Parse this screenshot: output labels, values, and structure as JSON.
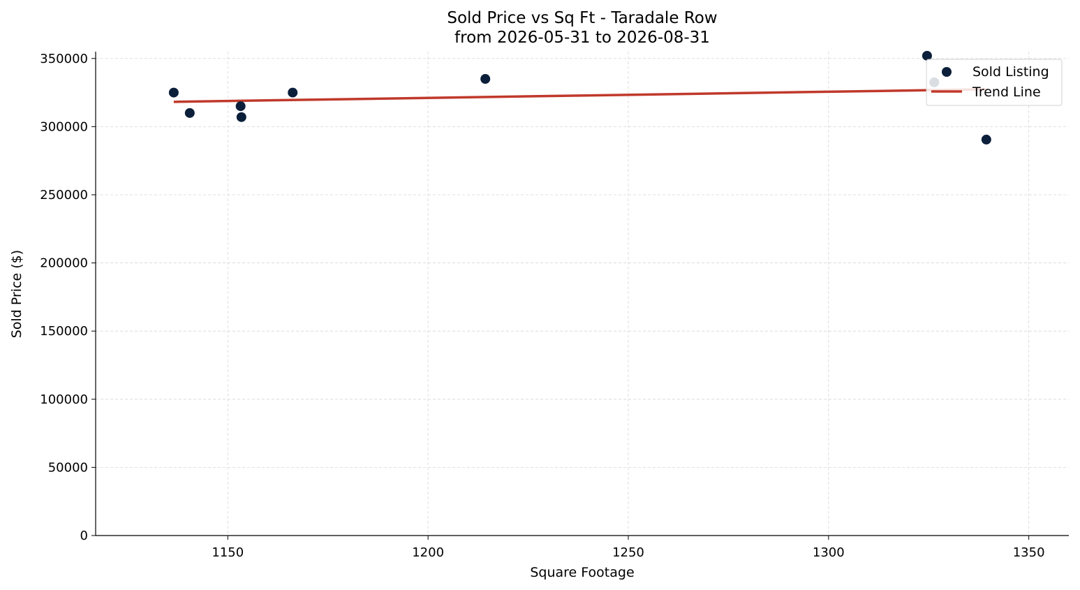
{
  "chart_data": {
    "type": "scatter",
    "title": "Sold Price vs Sq Ft - Taradale Row",
    "subtitle": "from 2026-05-31 to 2026-08-31",
    "xlabel": "Square Footage",
    "ylabel": "Sold Price ($)",
    "xlim": [
      1117,
      1360
    ],
    "ylim": [
      0,
      355000
    ],
    "xticks": [
      1150,
      1200,
      1250,
      1300,
      1350
    ],
    "yticks": [
      0,
      50000,
      100000,
      150000,
      200000,
      250000,
      300000,
      350000
    ],
    "grid": true,
    "legend_position": "top-right",
    "series": [
      {
        "name": "Sold Listing",
        "kind": "scatter",
        "color": "#0b1f3a",
        "x": [
          1136.5,
          1140.5,
          1153.2,
          1153.4,
          1166.2,
          1214.3,
          1324.6,
          1326.4,
          1339.4
        ],
        "y": [
          325000,
          310000,
          315000,
          307000,
          325000,
          335000,
          352000,
          332500,
          290500
        ]
      },
      {
        "name": "Trend Line",
        "kind": "line",
        "color": "#c0392b",
        "x": [
          1136.5,
          1339.4
        ],
        "y": [
          318200,
          327400
        ]
      }
    ]
  }
}
